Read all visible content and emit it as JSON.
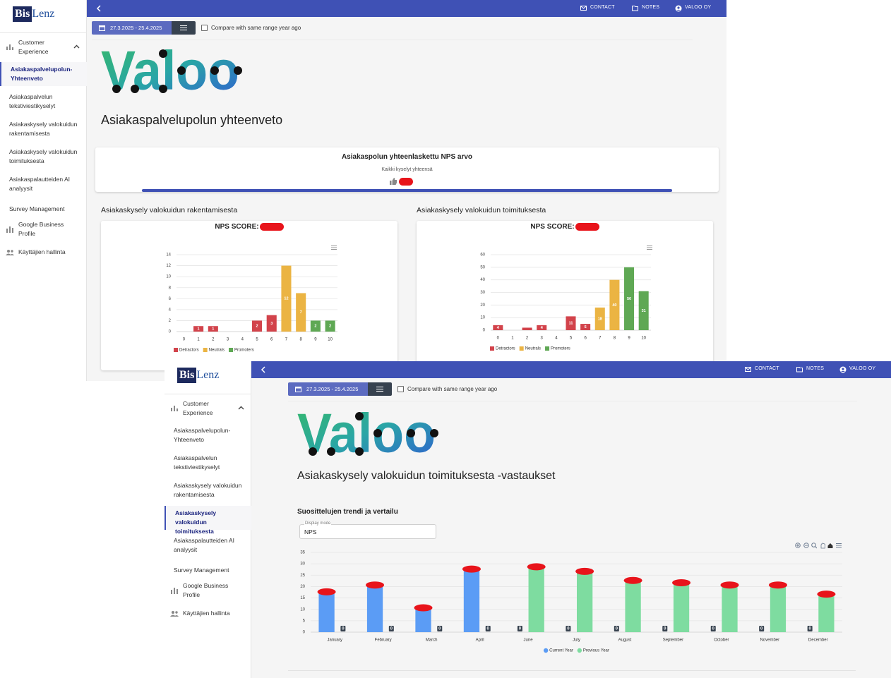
{
  "app": {
    "brand_bis": "Bis",
    "brand_lenz": "Lenz",
    "nav_group": "Customer Experience",
    "nav_items": [
      "Asiakaspalvelupolun-Yhteenveto",
      "Asiakaspalvelun tekstiviestikyselyt",
      "Asiakaskysely valokuidun rakentamisesta",
      "Asiakaskysely valokuidun toimituksesta",
      "Asiakaspalautteiden AI analyysit",
      "Survey Management"
    ],
    "nav_bottom": [
      "Google Business Profile",
      "Käyttäjien hallinta"
    ],
    "top_actions": [
      "CONTACT",
      "NOTES",
      "VALOO OY"
    ],
    "date_range": "27.3.2025 - 25.4.2025",
    "compare_label": "Compare with same range year ago",
    "logo": "Valoo"
  },
  "summary_page": {
    "title": "Asiakaspalvelupolun yhteenveto",
    "nps_card": {
      "title": "Asiakaspolun yhteenlaskettu NPS arvo",
      "subtitle": "Kaikki kyselyt yhteensä"
    },
    "sections": [
      {
        "heading": "Asiakaskysely valokuidun rakentamisesta",
        "score_label": "NPS SCORE:"
      },
      {
        "heading": "Asiakaskysely valokuidun toimituksesta",
        "score_label": "NPS SCORE:"
      }
    ]
  },
  "detail_page": {
    "title": "Asiakaskysely valokuidun toimituksesta -vastaukset",
    "section": "Suosittelujen trendi ja vertailu",
    "display_mode_label": "Display mode",
    "display_mode": "NPS"
  },
  "chart_data": [
    {
      "type": "bar",
      "categories": [
        "0",
        "1",
        "2",
        "3",
        "4",
        "5",
        "6",
        "7",
        "8",
        "9",
        "10"
      ],
      "series": [
        {
          "name": "Detractors",
          "color": "#d2434b",
          "values": [
            0,
            1,
            1,
            0,
            0,
            2,
            3,
            null,
            null,
            null,
            null
          ]
        },
        {
          "name": "Neutrals",
          "color": "#ebb443",
          "values": [
            null,
            null,
            null,
            null,
            null,
            null,
            null,
            12,
            7,
            null,
            null
          ]
        },
        {
          "name": "Promoters",
          "color": "#5fa854",
          "values": [
            null,
            null,
            null,
            null,
            null,
            null,
            null,
            null,
            null,
            2,
            2
          ]
        }
      ],
      "ylim": [
        0,
        14
      ],
      "yticks": [
        0,
        2,
        4,
        6,
        8,
        10,
        12,
        14
      ],
      "grid": true,
      "legend": "bottom-left"
    },
    {
      "type": "bar",
      "categories": [
        "0",
        "1",
        "2",
        "3",
        "4",
        "5",
        "6",
        "7",
        "8",
        "9",
        "10"
      ],
      "series": [
        {
          "name": "Detractors",
          "color": "#d2434b",
          "values": [
            4,
            0,
            2,
            4,
            0,
            11,
            5,
            null,
            null,
            null,
            null
          ]
        },
        {
          "name": "Neutrals",
          "color": "#ebb443",
          "values": [
            null,
            null,
            null,
            null,
            null,
            null,
            null,
            18,
            40,
            null,
            null
          ]
        },
        {
          "name": "Promoters",
          "color": "#5fa854",
          "values": [
            null,
            null,
            null,
            null,
            null,
            null,
            null,
            null,
            null,
            50,
            31
          ]
        }
      ],
      "ylim": [
        0,
        60
      ],
      "yticks": [
        0,
        10,
        20,
        30,
        40,
        50,
        60
      ],
      "grid": true,
      "legend": "bottom-left"
    },
    {
      "type": "bar",
      "categories": [
        "January",
        "February",
        "March",
        "April",
        "June",
        "July",
        "August",
        "September",
        "October",
        "November",
        "December"
      ],
      "series": [
        {
          "name": "Current Year",
          "color": "#5b9cf5",
          "values": [
            18,
            21,
            11,
            28,
            0,
            0,
            0,
            0,
            0,
            0,
            0
          ]
        },
        {
          "name": "Previous Year",
          "color": "#7edca0",
          "values": [
            0,
            0,
            0,
            0,
            29,
            27,
            23,
            22,
            21,
            21,
            17
          ]
        }
      ],
      "ylim": [
        0,
        35
      ],
      "yticks": [
        0,
        5,
        10,
        15,
        20,
        25,
        30,
        35
      ],
      "grid": true,
      "legend": "bottom-center"
    }
  ]
}
